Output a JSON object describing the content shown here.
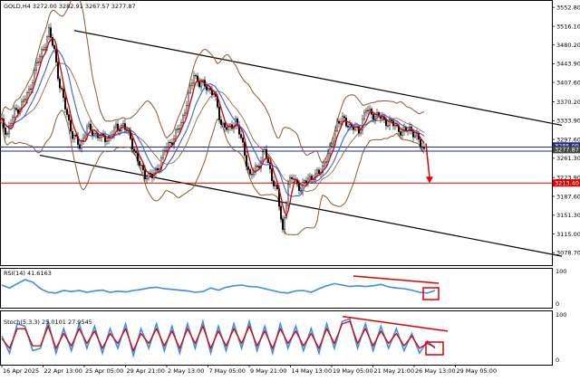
{
  "chart_data": {
    "type": "candlestick",
    "symbol": "GOLD",
    "timeframe": "H4",
    "ohlc": {
      "open": 3272.0,
      "high": 3282.91,
      "low": 3267.57,
      "close": 3277.87
    },
    "header_text": "GOLD,H4  3272.00 3282.91 3267.57 3277.87",
    "price_axis": {
      "ylim": [
        3060,
        3560
      ],
      "ticks": [
        "3552.80",
        "3516.10",
        "3480.20",
        "3443.90",
        "3407.60",
        "3370.20",
        "3333.90",
        "3297.60",
        "3261.30",
        "3223.90",
        "3187.60",
        "3151.30",
        "3115.00",
        "3078.70"
      ]
    },
    "price_labels": [
      {
        "text": "3285.09",
        "value": 3285.09,
        "color": "#1f2a8f"
      },
      {
        "text": "3277.87",
        "value": 3277.87,
        "color": "#444444"
      },
      {
        "text": "3213.40",
        "value": 3213.4,
        "color": "#e00000"
      }
    ],
    "x_labels": [
      "16 Apr 2025",
      "22 Apr 13:00",
      "25 Apr 05:00",
      "29 Apr 21:00",
      "2 May 13:00",
      "7 May 05:00",
      "9 May 21:00",
      "14 May 13:00",
      "19 May 05:00",
      "21 May 21:00",
      "26 May 13:00",
      "29 May 05:00"
    ],
    "price_path": [
      [
        0,
        3335
      ],
      [
        4,
        3310
      ],
      [
        8,
        3350
      ],
      [
        12,
        3365
      ],
      [
        16,
        3390
      ],
      [
        20,
        3440
      ],
      [
        24,
        3475
      ],
      [
        27,
        3505
      ],
      [
        30,
        3470
      ],
      [
        33,
        3400
      ],
      [
        36,
        3360
      ],
      [
        40,
        3305
      ],
      [
        44,
        3285
      ],
      [
        48,
        3320
      ],
      [
        52,
        3310
      ],
      [
        56,
        3300
      ],
      [
        60,
        3300
      ],
      [
        64,
        3320
      ],
      [
        68,
        3325
      ],
      [
        72,
        3300
      ],
      [
        76,
        3255
      ],
      [
        80,
        3230
      ],
      [
        84,
        3225
      ],
      [
        88,
        3250
      ],
      [
        92,
        3285
      ],
      [
        96,
        3300
      ],
      [
        100,
        3330
      ],
      [
        104,
        3380
      ],
      [
        107,
        3425
      ],
      [
        110,
        3405
      ],
      [
        114,
        3400
      ],
      [
        118,
        3385
      ],
      [
        122,
        3330
      ],
      [
        126,
        3315
      ],
      [
        130,
        3335
      ],
      [
        134,
        3285
      ],
      [
        138,
        3225
      ],
      [
        142,
        3245
      ],
      [
        146,
        3275
      ],
      [
        150,
        3225
      ],
      [
        153,
        3195
      ],
      [
        156,
        3120
      ],
      [
        159,
        3210
      ],
      [
        162,
        3225
      ],
      [
        166,
        3200
      ],
      [
        170,
        3225
      ],
      [
        174,
        3225
      ],
      [
        178,
        3245
      ],
      [
        182,
        3275
      ],
      [
        186,
        3330
      ],
      [
        190,
        3335
      ],
      [
        194,
        3320
      ],
      [
        198,
        3315
      ],
      [
        202,
        3355
      ],
      [
        206,
        3345
      ],
      [
        210,
        3340
      ],
      [
        214,
        3330
      ],
      [
        218,
        3325
      ],
      [
        222,
        3310
      ],
      [
        226,
        3320
      ],
      [
        230,
        3300
      ],
      [
        234,
        3278
      ]
    ],
    "channel": {
      "upper": [
        [
          41,
          3508
        ],
        [
          310,
          3325
        ]
      ],
      "lower": [
        [
          22,
          3267
        ],
        [
          310,
          3072
        ]
      ]
    },
    "horizontal_levels": [
      {
        "name": "blue-level-1",
        "value": 3283,
        "color": "#1f2a8f"
      },
      {
        "name": "blue-level-2",
        "value": 3275,
        "color": "#1f2a8f"
      },
      {
        "name": "red-level",
        "value": 3213.4,
        "color": "#e00000"
      }
    ],
    "rsi": {
      "label": "RSI(14) 41.6163",
      "ylim": [
        0,
        100
      ],
      "ticks": [
        "100",
        "0"
      ],
      "values": [
        60,
        52,
        64,
        75,
        68,
        50,
        40,
        38,
        45,
        42,
        45,
        40,
        44,
        46,
        40,
        43,
        41,
        45,
        48,
        52,
        54,
        50,
        48,
        46,
        44,
        40,
        42,
        52,
        46,
        54,
        58,
        60,
        56,
        55,
        50,
        45,
        40,
        38,
        44,
        45,
        40,
        50,
        58,
        64,
        60,
        56,
        58,
        56,
        58,
        62,
        55,
        52,
        50,
        46,
        40,
        38,
        45
      ],
      "divergence": [
        [
          0.0,
          85
        ],
        [
          1.0,
          65
        ]
      ]
    },
    "stoch": {
      "label": "Stoch(5,3,3) 25.0101 27.9545",
      "ylim": [
        0,
        100
      ],
      "ticks": [
        "100",
        "0"
      ],
      "k_values": [
        55,
        20,
        80,
        75,
        25,
        30,
        85,
        20,
        70,
        25,
        80,
        30,
        75,
        20,
        70,
        30,
        80,
        15,
        70,
        30,
        80,
        25,
        75,
        20,
        80,
        30,
        85,
        20,
        75,
        25,
        80,
        30,
        85,
        25,
        75,
        20,
        80,
        30,
        75,
        25,
        70,
        20,
        80,
        30,
        85,
        90,
        30,
        80,
        25,
        75,
        30,
        70,
        25,
        60,
        20,
        45,
        30
      ],
      "d_values": [
        50,
        30,
        70,
        70,
        35,
        35,
        75,
        30,
        60,
        35,
        70,
        40,
        65,
        30,
        60,
        40,
        70,
        25,
        60,
        40,
        70,
        35,
        65,
        30,
        70,
        40,
        75,
        30,
        65,
        35,
        70,
        40,
        75,
        35,
        65,
        30,
        70,
        40,
        65,
        35,
        60,
        30,
        70,
        40,
        80,
        85,
        40,
        70,
        35,
        65,
        40,
        60,
        35,
        55,
        30,
        40,
        32
      ],
      "divergence": [
        [
          0.0,
          95
        ],
        [
          1.0,
          65
        ]
      ]
    },
    "colors": {
      "candles": "#000000",
      "bollinger": "#8b5a2b",
      "fast_ma": "#d00000",
      "slow_ma": "#3b5fd9",
      "channel": "#000000",
      "indicator_line": "#3b8fe0",
      "stoch_signal": "#e00000",
      "annotation": "#e00000"
    }
  }
}
